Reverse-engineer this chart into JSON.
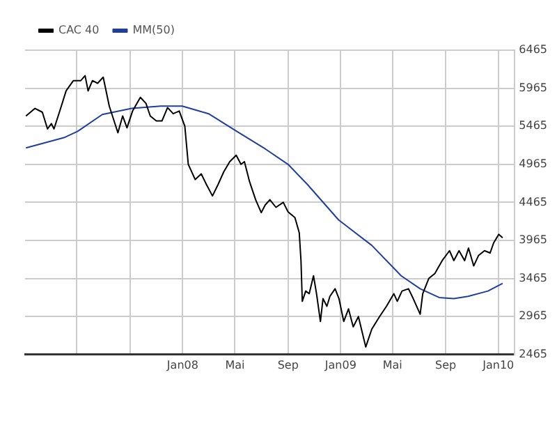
{
  "chart_data": {
    "type": "line",
    "xlim": [
      "2007-01-01",
      "2010-02-08"
    ],
    "xticks": [
      {
        "value": "2007-05-01",
        "label": null
      },
      {
        "value": "2007-09-01",
        "label": null
      },
      {
        "value": "2008-01-01",
        "label": "Jan08"
      },
      {
        "value": "2008-05-01",
        "label": "Mai"
      },
      {
        "value": "2008-09-01",
        "label": "Sep"
      },
      {
        "value": "2009-01-01",
        "label": "Jan09"
      },
      {
        "value": "2009-05-01",
        "label": "Mai"
      },
      {
        "value": "2009-09-01",
        "label": "Sep"
      },
      {
        "value": "2010-01-01",
        "label": "Jan10"
      }
    ],
    "ylim": [
      2465,
      6465
    ],
    "yticks": [
      2465,
      2965,
      3465,
      3965,
      4465,
      4965,
      5465,
      5965,
      6465
    ],
    "grid": true,
    "legend": "top left",
    "marker": "none",
    "line_style": "solid",
    "series": [
      {
        "name": "CAC 40",
        "color": "#000000",
        "x": [
          "2007-01-03",
          "2007-01-24",
          "2007-02-10",
          "2007-02-22",
          "2007-03-03",
          "2007-03-09",
          "2007-03-26",
          "2007-04-06",
          "2007-04-23",
          "2007-05-10",
          "2007-05-20",
          "2007-05-27",
          "2007-06-06",
          "2007-06-18",
          "2007-07-01",
          "2007-07-15",
          "2007-08-04",
          "2007-08-15",
          "2007-08-25",
          "2007-09-07",
          "2007-09-25",
          "2007-10-08",
          "2007-10-18",
          "2007-11-01",
          "2007-11-14",
          "2007-11-27",
          "2007-12-10",
          "2007-12-24",
          "2008-01-06",
          "2008-01-14",
          "2008-01-30",
          "2008-02-13",
          "2008-02-25",
          "2008-03-10",
          "2008-03-23",
          "2008-04-05",
          "2008-04-19",
          "2008-05-04",
          "2008-05-15",
          "2008-05-23",
          "2008-06-04",
          "2008-06-18",
          "2008-07-01",
          "2008-07-10",
          "2008-07-21",
          "2008-08-04",
          "2008-08-21",
          "2008-09-01",
          "2008-09-17",
          "2008-09-27",
          "2008-10-01",
          "2008-10-04",
          "2008-10-12",
          "2008-10-20",
          "2008-10-30",
          "2008-11-06",
          "2008-11-15",
          "2008-11-21",
          "2008-11-30",
          "2008-12-07",
          "2008-12-19",
          "2008-12-28",
          "2009-01-08",
          "2009-01-19",
          "2009-01-30",
          "2009-02-11",
          "2009-02-28",
          "2009-03-14",
          "2009-04-01",
          "2009-04-17",
          "2009-05-04",
          "2009-05-12",
          "2009-05-23",
          "2009-06-07",
          "2009-06-18",
          "2009-07-04",
          "2009-07-10",
          "2009-07-24",
          "2009-08-07",
          "2009-08-24",
          "2009-09-10",
          "2009-09-20",
          "2009-10-02",
          "2009-10-15",
          "2009-10-24",
          "2009-11-05",
          "2009-11-16",
          "2009-11-30",
          "2009-12-13",
          "2009-12-21",
          "2010-01-02",
          "2010-01-11"
        ],
        "values": [
          5600,
          5700,
          5650,
          5430,
          5500,
          5430,
          5730,
          5930,
          6065,
          6065,
          6130,
          5930,
          6065,
          6030,
          6110,
          5730,
          5380,
          5600,
          5445,
          5665,
          5845,
          5765,
          5600,
          5535,
          5535,
          5710,
          5630,
          5665,
          5465,
          4965,
          4765,
          4840,
          4700,
          4550,
          4700,
          4865,
          5000,
          5085,
          4965,
          5000,
          4735,
          4500,
          4330,
          4430,
          4500,
          4400,
          4465,
          4340,
          4265,
          4065,
          3700,
          3165,
          3300,
          3265,
          3500,
          3265,
          2900,
          3200,
          3100,
          3230,
          3330,
          3200,
          2900,
          3065,
          2830,
          2965,
          2565,
          2800,
          2965,
          3100,
          3265,
          3165,
          3300,
          3330,
          3200,
          2995,
          3265,
          3465,
          3530,
          3700,
          3830,
          3700,
          3830,
          3700,
          3865,
          3630,
          3765,
          3830,
          3800,
          3930,
          4045,
          4000
        ]
      },
      {
        "name": "MM(50)",
        "color": "#1f3fa0",
        "x": [
          "2007-01-03",
          "2007-04-01",
          "2007-05-03",
          "2007-06-29",
          "2007-09-05",
          "2007-11-11",
          "2007-12-31",
          "2008-03-01",
          "2008-05-05",
          "2008-07-11",
          "2008-09-01",
          "2008-10-16",
          "2008-12-27",
          "2009-03-14",
          "2009-05-21",
          "2009-07-04",
          "2009-08-17",
          "2009-09-20",
          "2009-10-23",
          "2009-12-08",
          "2010-01-11"
        ],
        "values": [
          5180,
          5315,
          5400,
          5620,
          5700,
          5730,
          5730,
          5630,
          5400,
          5165,
          4965,
          4700,
          4235,
          3900,
          3500,
          3330,
          3215,
          3200,
          3230,
          3300,
          3400
        ]
      }
    ]
  }
}
